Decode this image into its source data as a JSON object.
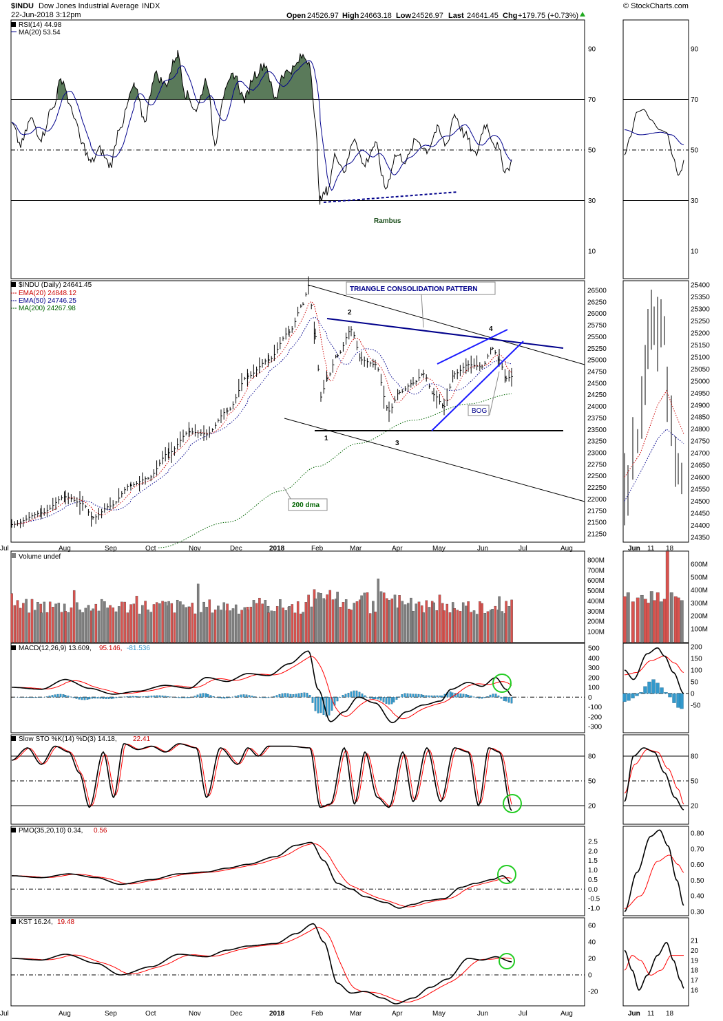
{
  "header": {
    "symbol": "$INDU",
    "name": "Dow Jones Industrial Average",
    "exchange": "INDX",
    "date": "22-Jun-2018 3:12pm",
    "open_label": "Open",
    "open": "24526.97",
    "high_label": "High",
    "high": "24663.18",
    "low_label": "Low",
    "low": "24526.97",
    "last_label": "Last",
    "last": "24641.45",
    "chg_label": "Chg",
    "chg": "+179.75 (+0.73%)",
    "watermark": "© StockCharts.com"
  },
  "colors": {
    "price": "#000000",
    "ema20": "#cc0000",
    "ema50": "#00008b",
    "ma200": "#006400",
    "rsi_fill": "#5a7a5a",
    "up_bar": "#d9534f",
    "down_bar": "#808080",
    "hist": "#3399cc",
    "signal": "#ff0000",
    "annot": "#00008b",
    "circle": "#22cc22"
  },
  "x_axis": {
    "main_labels": [
      "Jul",
      "Aug",
      "Sep",
      "Oct",
      "Nov",
      "Dec",
      "2018",
      "Feb",
      "Mar",
      "Apr",
      "May",
      "Jun",
      "Jul",
      "Aug"
    ],
    "zoom_labels": [
      "Jun",
      "11",
      "18"
    ]
  },
  "panels": {
    "rsi": {
      "legend1": "RSI(14) 44.98",
      "legend2": "MA(20) 53.54",
      "ticks": [
        "90",
        "70",
        "50",
        "30",
        "10"
      ],
      "annotation": "Rambus"
    },
    "price": {
      "legend_main": "$INDU (Daily) 24641.45",
      "legend_ema20": "EMA(20) 24848.12",
      "legend_ema50": "EMA(50) 24746.25",
      "legend_ma200": "MA(200) 24267.98",
      "ticks": [
        "26500",
        "26250",
        "26000",
        "25750",
        "25500",
        "25250",
        "25000",
        "24750",
        "24500",
        "24250",
        "24000",
        "23750",
        "23500",
        "23250",
        "23000",
        "22750",
        "22500",
        "22250",
        "22000",
        "21750",
        "21500",
        "21250"
      ],
      "zoom_ticks": [
        "25400",
        "25350",
        "25300",
        "25250",
        "25200",
        "25150",
        "25100",
        "25050",
        "25000",
        "24950",
        "24900",
        "24850",
        "24800",
        "24750",
        "24700",
        "24650",
        "24600",
        "24550",
        "24500",
        "24450",
        "24400",
        "24350"
      ],
      "title_box": "TRIANGLE CONSOLIDATION PATTERN",
      "bog": "BOG",
      "dma_label": "200 dma",
      "pt1": "1",
      "pt2": "2",
      "pt3": "3",
      "pt4": "4"
    },
    "volume": {
      "legend": "Volume undef",
      "ticks": [
        "800M",
        "700M",
        "600M",
        "500M",
        "400M",
        "300M",
        "200M",
        "100M"
      ],
      "zoom_ticks": [
        "600M",
        "500M",
        "400M",
        "300M",
        "200M",
        "100M"
      ]
    },
    "macd": {
      "legend_main": "MACD(12,26,9) 13.609,",
      "legend_sig": "95.146,",
      "legend_hist": "-81.536",
      "ticks": [
        "500",
        "400",
        "300",
        "200",
        "100",
        "0",
        "-100",
        "-200",
        "-300"
      ],
      "zoom_ticks": [
        "200",
        "150",
        "100",
        "50",
        "0",
        "-50"
      ]
    },
    "sto": {
      "legend_main": "Slow STO %K(14) %D(3) 14.18,",
      "legend_sig": "22.41",
      "ticks": [
        "80",
        "50",
        "20"
      ]
    },
    "pmo": {
      "legend_main": "PMO(35,20,10) 0.34,",
      "legend_sig": "0.56",
      "ticks": [
        "2.5",
        "2.0",
        "1.5",
        "1.0",
        "0.5",
        "0.0",
        "-0.5",
        "-1.0"
      ],
      "zoom_ticks": [
        "0.80",
        "0.70",
        "0.60",
        "0.50",
        "0.40",
        "0.30"
      ]
    },
    "kst": {
      "legend_main": "KST 16.24,",
      "legend_sig": "19.48",
      "ticks": [
        "60",
        "40",
        "20",
        "0",
        "-20"
      ],
      "zoom_ticks": [
        "21",
        "20",
        "19",
        "18",
        "17",
        "16"
      ]
    }
  },
  "chart_data": {
    "type": "line",
    "title": "$INDU Dow Jones Industrial Average INDX",
    "x_range": [
      "2017-07",
      "2018-08"
    ],
    "series": [
      {
        "name": "$INDU (Daily)",
        "description_points": [
          {
            "x": "2017-07-01",
            "y": 21450
          },
          {
            "x": "2017-08-01",
            "y": 21900
          },
          {
            "x": "2017-09-01",
            "y": 21900
          },
          {
            "x": "2017-10-01",
            "y": 22400
          },
          {
            "x": "2017-11-01",
            "y": 23400
          },
          {
            "x": "2017-12-01",
            "y": 24200
          },
          {
            "x": "2018-01-01",
            "y": 24800
          },
          {
            "x": "2018-01-26",
            "y": 26600
          },
          {
            "x": "2018-02-08",
            "y": 23860
          },
          {
            "x": "2018-02-27",
            "y": 25700
          },
          {
            "x": "2018-03-23",
            "y": 23500
          },
          {
            "x": "2018-04-18",
            "y": 24700
          },
          {
            "x": "2018-05-03",
            "y": 23900
          },
          {
            "x": "2018-06-12",
            "y": 25300
          },
          {
            "x": "2018-06-22",
            "y": 24641
          }
        ]
      },
      {
        "name": "EMA(20)",
        "last": 24848.12
      },
      {
        "name": "EMA(50)",
        "last": 24746.25
      },
      {
        "name": "MA(200)",
        "last": 24267.98
      }
    ],
    "ylim": [
      21250,
      26600
    ],
    "indicators": {
      "RSI(14)": 44.98,
      "RSI MA(20)": 53.54,
      "MACD": 13.609,
      "MACD signal": 95.146,
      "MACD hist": -81.536,
      "STO %K": 14.18,
      "STO %D": 22.41,
      "PMO": 0.34,
      "PMO signal": 0.56,
      "KST": 16.24,
      "KST signal": 19.48
    }
  }
}
